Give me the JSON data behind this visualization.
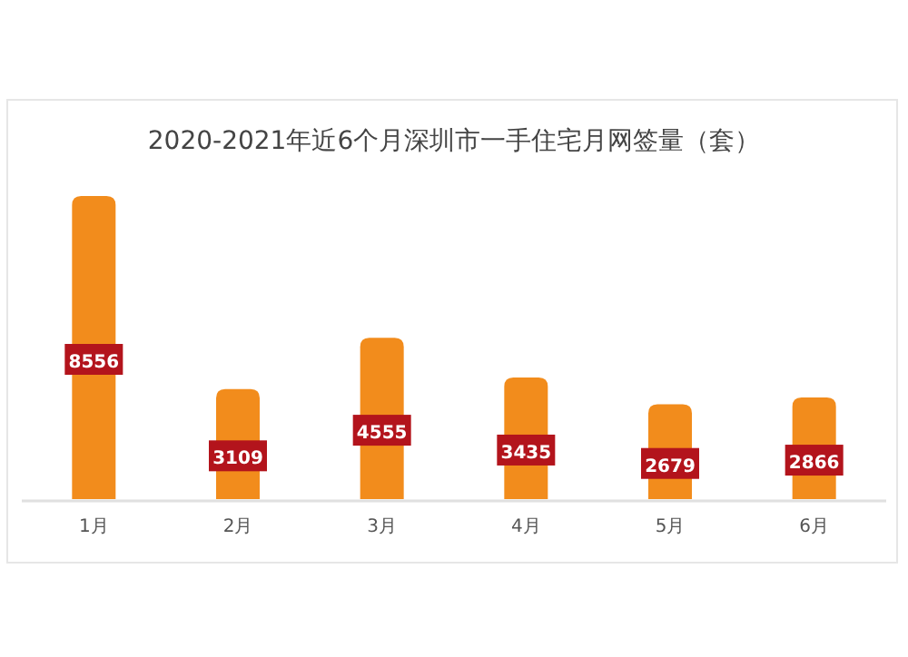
{
  "chart_data": {
    "type": "bar",
    "title": "2020-2021年近6个月深圳市一手住宅月网签量（套）",
    "categories": [
      "1月",
      "2月",
      "3月",
      "4月",
      "5月",
      "6月"
    ],
    "values": [
      8556,
      3109,
      4555,
      3435,
      2679,
      2866
    ],
    "color": "#f28c1c",
    "data_labels": true
  }
}
